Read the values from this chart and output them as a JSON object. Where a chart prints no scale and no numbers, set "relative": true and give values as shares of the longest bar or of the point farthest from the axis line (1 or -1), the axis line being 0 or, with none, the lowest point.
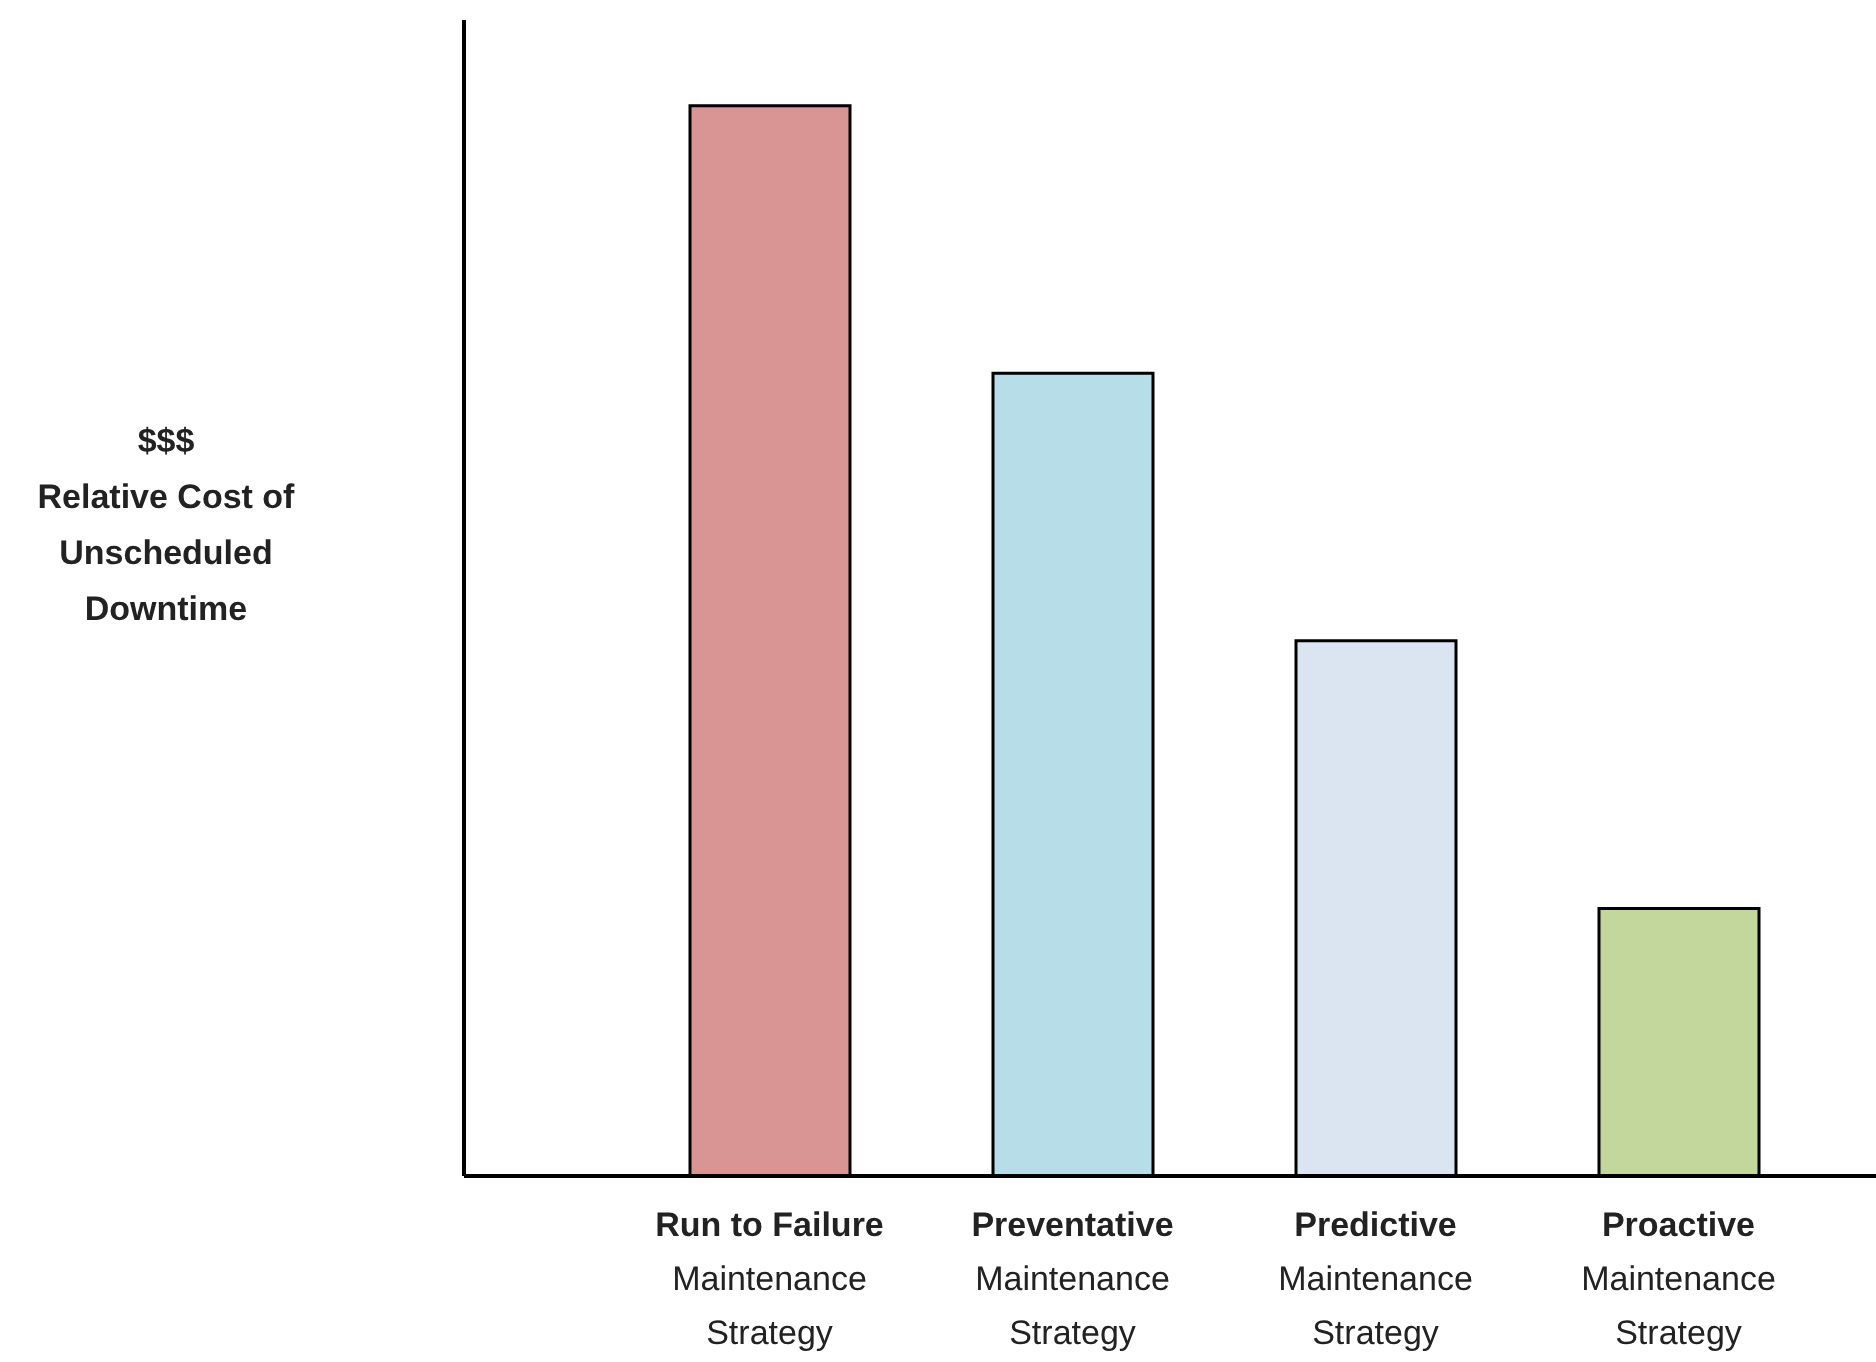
{
  "chart_data": {
    "type": "bar",
    "relative": true,
    "ylabel": "$$$\nRelative Cost of\nUnscheduled\nDowntime",
    "categories": [
      "Run to Failure\nMaintenance\nStrategy",
      "Preventative\nMaintenance\nStrategy",
      "Predictive\nMaintenance\nStrategy",
      "Proactive\nMaintenance\nStrategy"
    ],
    "values": [
      1,
      0.75,
      0.5,
      0.25
    ],
    "colors": [
      "#d99594",
      "#b7dde8",
      "#dbe5f1",
      "#c3d69b"
    ],
    "grid": false,
    "legend": false
  }
}
